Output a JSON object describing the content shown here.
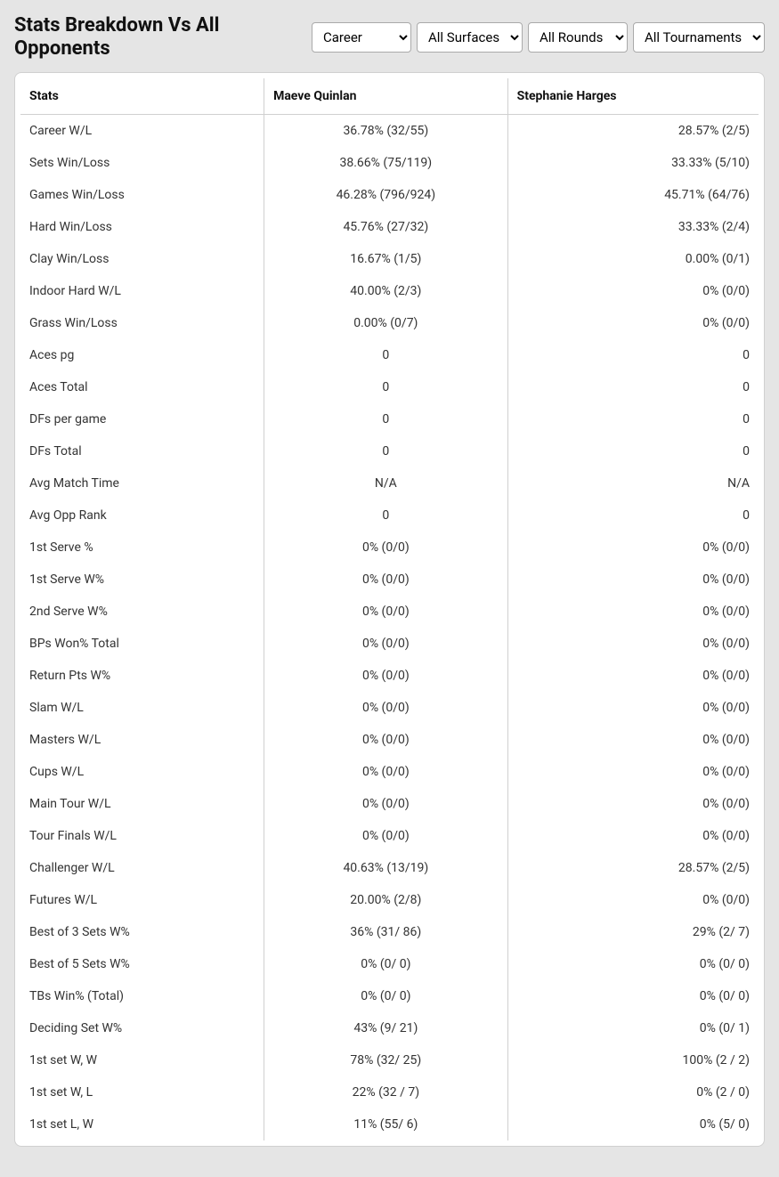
{
  "title": "Stats Breakdown Vs All Opponents",
  "filters": {
    "period": {
      "selected": "Career",
      "options": [
        "Career"
      ]
    },
    "surface": {
      "selected": "All Surfaces",
      "options": [
        "All Surfaces"
      ]
    },
    "round": {
      "selected": "All Rounds",
      "options": [
        "All Rounds"
      ]
    },
    "tournament": {
      "selected": "All Tournaments",
      "options": [
        "All Tournaments"
      ]
    }
  },
  "columns": {
    "stats": "Stats",
    "player1": "Maeve Quinlan",
    "player2": "Stephanie Harges"
  },
  "rows": [
    {
      "stat": "Career W/L",
      "p1": "36.78% (32/55)",
      "p2": "28.57% (2/5)"
    },
    {
      "stat": "Sets Win/Loss",
      "p1": "38.66% (75/119)",
      "p2": "33.33% (5/10)"
    },
    {
      "stat": "Games Win/Loss",
      "p1": "46.28% (796/924)",
      "p2": "45.71% (64/76)"
    },
    {
      "stat": "Hard Win/Loss",
      "p1": "45.76% (27/32)",
      "p2": "33.33% (2/4)"
    },
    {
      "stat": "Clay Win/Loss",
      "p1": "16.67% (1/5)",
      "p2": "0.00% (0/1)"
    },
    {
      "stat": "Indoor Hard W/L",
      "p1": "40.00% (2/3)",
      "p2": "0% (0/0)"
    },
    {
      "stat": "Grass Win/Loss",
      "p1": "0.00% (0/7)",
      "p2": "0% (0/0)"
    },
    {
      "stat": "Aces pg",
      "p1": "0",
      "p2": "0"
    },
    {
      "stat": "Aces Total",
      "p1": "0",
      "p2": "0"
    },
    {
      "stat": "DFs per game",
      "p1": "0",
      "p2": "0"
    },
    {
      "stat": "DFs Total",
      "p1": "0",
      "p2": "0"
    },
    {
      "stat": "Avg Match Time",
      "p1": "N/A",
      "p2": "N/A"
    },
    {
      "stat": "Avg Opp Rank",
      "p1": "0",
      "p2": "0"
    },
    {
      "stat": "1st Serve %",
      "p1": "0% (0/0)",
      "p2": "0% (0/0)"
    },
    {
      "stat": "1st Serve W%",
      "p1": "0% (0/0)",
      "p2": "0% (0/0)"
    },
    {
      "stat": "2nd Serve W%",
      "p1": "0% (0/0)",
      "p2": "0% (0/0)"
    },
    {
      "stat": "BPs Won% Total",
      "p1": "0% (0/0)",
      "p2": "0% (0/0)"
    },
    {
      "stat": "Return Pts W%",
      "p1": "0% (0/0)",
      "p2": "0% (0/0)"
    },
    {
      "stat": "Slam W/L",
      "p1": "0% (0/0)",
      "p2": "0% (0/0)"
    },
    {
      "stat": "Masters W/L",
      "p1": "0% (0/0)",
      "p2": "0% (0/0)"
    },
    {
      "stat": "Cups W/L",
      "p1": "0% (0/0)",
      "p2": "0% (0/0)"
    },
    {
      "stat": "Main Tour W/L",
      "p1": "0% (0/0)",
      "p2": "0% (0/0)"
    },
    {
      "stat": "Tour Finals W/L",
      "p1": "0% (0/0)",
      "p2": "0% (0/0)"
    },
    {
      "stat": "Challenger W/L",
      "p1": "40.63% (13/19)",
      "p2": "28.57% (2/5)"
    },
    {
      "stat": "Futures W/L",
      "p1": "20.00% (2/8)",
      "p2": "0% (0/0)"
    },
    {
      "stat": "Best of 3 Sets W%",
      "p1": "36% (31/ 86)",
      "p2": "29% (2/ 7)"
    },
    {
      "stat": "Best of 5 Sets W%",
      "p1": "0% (0/ 0)",
      "p2": "0% (0/ 0)"
    },
    {
      "stat": "TBs Win% (Total)",
      "p1": "0% (0/ 0)",
      "p2": "0% (0/ 0)"
    },
    {
      "stat": "Deciding Set W%",
      "p1": "43% (9/ 21)",
      "p2": "0% (0/ 1)"
    },
    {
      "stat": "1st set W, W",
      "p1": "78% (32/ 25)",
      "p2": "100% (2 / 2)"
    },
    {
      "stat": "1st set W, L",
      "p1": "22% (32 / 7)",
      "p2": "0% (2 / 0)"
    },
    {
      "stat": "1st set L, W",
      "p1": "11% (55/ 6)",
      "p2": "0% (5/ 0)"
    }
  ]
}
